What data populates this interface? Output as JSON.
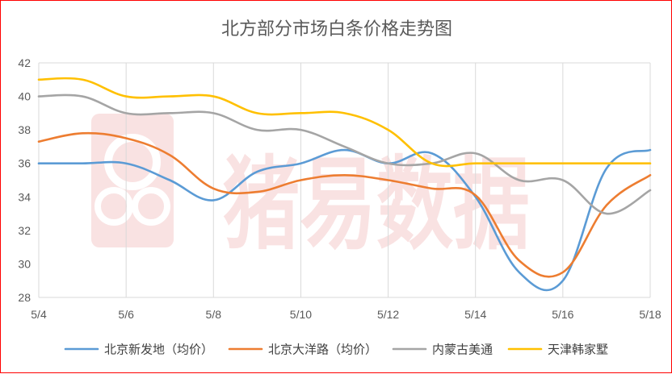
{
  "chart_data": {
    "type": "line",
    "title": "北方部分市场白条价格走势图",
    "watermark": "猪易数据",
    "x": [
      "5/4",
      "5/5",
      "5/6",
      "5/7",
      "5/8",
      "5/9",
      "5/10",
      "5/11",
      "5/12",
      "5/13",
      "5/14",
      "5/15",
      "5/16",
      "5/17",
      "5/18"
    ],
    "x_tick_labels": [
      "5/4",
      "5/6",
      "5/8",
      "5/10",
      "5/12",
      "5/14",
      "5/16",
      "5/18"
    ],
    "ylim": [
      28,
      42
    ],
    "y_ticks": [
      28,
      30,
      32,
      34,
      36,
      38,
      40,
      42
    ],
    "grid": "vertical",
    "legend_position": "bottom",
    "series": [
      {
        "name": "北京新发地（均价）",
        "color": "#5B9BD5",
        "values": [
          36.0,
          36.0,
          36.0,
          35.0,
          33.8,
          35.5,
          36.0,
          36.8,
          36.0,
          36.6,
          34.0,
          29.5,
          29.0,
          35.7,
          36.8
        ]
      },
      {
        "name": "北京大洋路（均价）",
        "color": "#ED7D31",
        "values": [
          37.3,
          37.8,
          37.5,
          36.5,
          34.5,
          34.3,
          35.0,
          35.3,
          35.0,
          34.5,
          34.1,
          30.2,
          29.5,
          33.5,
          35.3
        ]
      },
      {
        "name": "内蒙古美通",
        "color": "#A5A5A5",
        "values": [
          40.0,
          40.0,
          39.0,
          39.0,
          39.0,
          38.0,
          38.0,
          37.0,
          36.0,
          36.0,
          36.6,
          35.0,
          35.0,
          33.0,
          34.4
        ]
      },
      {
        "name": "天津韩家墅",
        "color": "#FFC000",
        "values": [
          41.0,
          41.0,
          40.0,
          40.0,
          40.0,
          39.0,
          39.0,
          39.0,
          38.0,
          36.0,
          36.0,
          36.0,
          36.0,
          36.0,
          36.0
        ]
      }
    ]
  }
}
